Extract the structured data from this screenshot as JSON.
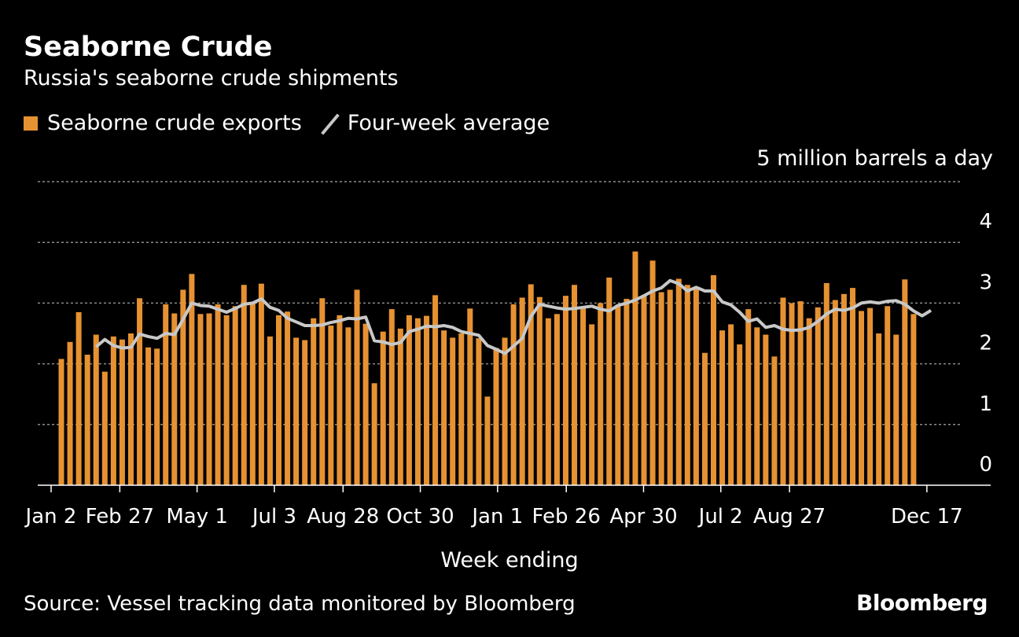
{
  "title": "Seaborne Crude",
  "subtitle": "Russia's seaborne crude shipments",
  "legend": {
    "bars": "Seaborne crude exports",
    "line": "Four-week average"
  },
  "unit_label": "5 million barrels a day",
  "x_axis_title": "Week ending",
  "source": "Source: Vessel tracking data monitored by Bloomberg",
  "brand": "Bloomberg",
  "colors": {
    "bars": "#e69232",
    "line": "#c8c8c8",
    "grid": "#8c8c8c",
    "background": "#000000",
    "text": "#ffffff"
  },
  "chart_data": {
    "type": "bar",
    "title": "Seaborne Crude",
    "subtitle": "Russia's seaborne crude shipments",
    "xlabel": "Week ending",
    "ylabel": "5 million barrels a day",
    "ylim": [
      0,
      5
    ],
    "yticks": [
      "0",
      "1",
      "2",
      "3",
      "4"
    ],
    "grid": true,
    "legend_position": "top-left",
    "x_tick_labels": [
      {
        "index": 0,
        "label": "Jan 2"
      },
      {
        "index": 8,
        "label": "Feb 27"
      },
      {
        "index": 17,
        "label": "May 1"
      },
      {
        "index": 26,
        "label": "Jul 3"
      },
      {
        "index": 34,
        "label": "Aug 28"
      },
      {
        "index": 43,
        "label": "Oct 30"
      },
      {
        "index": 52,
        "label": "Jan 1"
      },
      {
        "index": 60,
        "label": "Feb 26"
      },
      {
        "index": 69,
        "label": "Apr 30"
      },
      {
        "index": 78,
        "label": "Jul 2"
      },
      {
        "index": 86,
        "label": "Aug 27"
      },
      {
        "index": 102,
        "label": "Dec 17"
      }
    ],
    "series": [
      {
        "name": "Seaborne crude exports",
        "type": "bar",
        "values": [
          2.08,
          2.36,
          2.85,
          2.15,
          2.48,
          1.87,
          2.45,
          2.4,
          2.5,
          3.08,
          2.27,
          2.25,
          2.98,
          2.83,
          3.22,
          3.48,
          2.82,
          2.83,
          2.98,
          2.8,
          2.95,
          3.3,
          3.02,
          3.32,
          2.45,
          2.8,
          2.86,
          2.43,
          2.39,
          2.75,
          3.08,
          2.63,
          2.8,
          2.6,
          3.22,
          2.66,
          1.68,
          2.53,
          2.9,
          2.58,
          2.8,
          2.75,
          2.79,
          3.13,
          2.55,
          2.43,
          2.5,
          2.91,
          2.42,
          1.46,
          2.26,
          2.43,
          2.98,
          3.09,
          3.31,
          3.1,
          2.75,
          2.82,
          3.12,
          3.3,
          2.94,
          2.65,
          3.0,
          3.42,
          2.97,
          3.07,
          3.85,
          3.12,
          3.7,
          3.18,
          3.22,
          3.4,
          3.3,
          3.27,
          2.18,
          3.46,
          2.55,
          2.65,
          2.32,
          2.9,
          2.6,
          2.48,
          2.12,
          3.09,
          3.0,
          3.03,
          2.75,
          2.93,
          3.33,
          3.05,
          3.15,
          3.25,
          2.87,
          2.92,
          2.5,
          2.95,
          2.48,
          3.39,
          2.82
        ]
      },
      {
        "name": "Four-week average",
        "type": "line",
        "start_index": 4,
        "values": [
          2.28,
          2.4,
          2.3,
          2.26,
          2.27,
          2.49,
          2.45,
          2.42,
          2.5,
          2.48,
          2.73,
          3.0,
          2.96,
          2.95,
          2.9,
          2.85,
          2.91,
          2.98,
          3.0,
          3.07,
          2.93,
          2.88,
          2.75,
          2.69,
          2.63,
          2.63,
          2.64,
          2.68,
          2.71,
          2.75,
          2.74,
          2.77,
          2.38,
          2.36,
          2.32,
          2.35,
          2.53,
          2.57,
          2.62,
          2.61,
          2.63,
          2.6,
          2.53,
          2.5,
          2.47,
          2.3,
          2.24,
          2.17,
          2.29,
          2.42,
          2.78,
          2.98,
          2.95,
          2.92,
          2.9,
          2.91,
          2.93,
          2.95,
          2.9,
          2.87,
          2.96,
          3.0,
          3.05,
          3.12,
          3.2,
          3.25,
          3.37,
          3.32,
          3.2,
          3.26,
          3.2,
          3.2,
          3.02,
          2.97,
          2.85,
          2.7,
          2.74,
          2.6,
          2.63,
          2.57,
          2.55,
          2.56,
          2.6,
          2.7,
          2.82,
          2.9,
          2.88,
          2.92,
          3.0,
          3.02,
          3.0,
          3.03,
          3.04,
          2.98,
          2.87,
          2.79,
          2.88
        ]
      }
    ]
  }
}
